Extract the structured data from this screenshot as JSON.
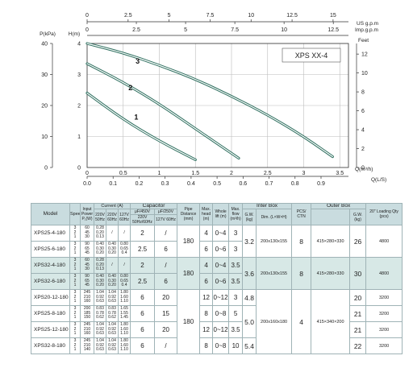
{
  "chart_data": {
    "type": "line",
    "title": "XPS XX-4",
    "left_outer_axis": {
      "label": "P(kPa)",
      "ticks": [
        0,
        10,
        20,
        30,
        40
      ],
      "range": [
        0,
        40
      ]
    },
    "left_axis": {
      "label": "H(m)",
      "ticks": [
        0,
        1,
        2,
        3,
        4
      ],
      "range": [
        0,
        4
      ]
    },
    "right_axis": {
      "label": "Feet",
      "ticks": [
        0,
        2,
        4,
        6,
        8,
        10,
        12
      ],
      "range": [
        0,
        13.12
      ]
    },
    "top_axis_1": {
      "label": "US g.p.m",
      "ticks": [
        0,
        2.5,
        5,
        7.5,
        10,
        12.5,
        15
      ]
    },
    "top_axis_2": {
      "label": "Imp.g.p.m",
      "ticks": [
        0,
        2.5,
        5,
        7.5,
        10,
        12.5
      ]
    },
    "bottom_axis_1": {
      "label": "Q(m³/h)",
      "ticks": [
        0,
        0.5,
        1,
        1.5,
        2,
        2.5,
        3,
        3.5
      ]
    },
    "bottom_axis_2": {
      "label": "Q(L/S)",
      "ticks": [
        0.0,
        0.1,
        0.2,
        0.3,
        0.4,
        0.5,
        0.6,
        0.7,
        0.8,
        0.9
      ]
    },
    "xlim": [
      0,
      3.62
    ],
    "ylim": [
      0,
      4
    ],
    "series": [
      {
        "name": "1",
        "x": [
          0,
          0.5,
          1.0,
          1.5
        ],
        "y": [
          2.4,
          1.55,
          0.85,
          0.25
        ],
        "label_at": [
          0.68,
          1.55
        ]
      },
      {
        "name": "2",
        "x": [
          0,
          0.5,
          1.0,
          1.5,
          2.1
        ],
        "y": [
          3.35,
          2.75,
          2.05,
          1.25,
          0.3
        ],
        "label_at": [
          0.6,
          2.5
        ]
      },
      {
        "name": "3",
        "x": [
          0,
          0.5,
          1.0,
          1.5,
          2.0,
          2.5,
          3.0,
          3.4
        ],
        "y": [
          4.0,
          3.7,
          3.3,
          2.85,
          2.3,
          1.7,
          1.0,
          0.35
        ],
        "label_at": [
          0.7,
          3.35
        ]
      }
    ]
  },
  "table": {
    "headers": {
      "model": "Model",
      "speed": "Speed",
      "power": "Input Power P₁(W)",
      "current": "Current (A)",
      "cur_220_50": "220V 50Hz",
      "cur_220_60": "220V 60Hz",
      "cur_127_60": "127V 60Hz",
      "capacitor": "Capacitor",
      "cap_450": "μF/450V",
      "cap_250": "μF/250V",
      "cap_220": "220V 50Hz/60Hz",
      "cap_127": "127V 60Hz",
      "pipe": "Pipe Distance (mm)",
      "maxhead": "Max. head (m)",
      "lift": "Whole lift (m)",
      "maxflow": "Max. flow (m³/h)",
      "inner": "Inter Box",
      "inner_gw": "G.W. (kg)",
      "inner_dim": "Dim. (L×W×H)",
      "pcs": "PCS/ CTN",
      "outer": "Outer Box",
      "outer_dim": "",
      "outer_gw": "G.W. (kg)",
      "loading": "20\" Loading Qty (pcs)"
    },
    "rows": [
      {
        "model": "XPS25-4-180",
        "speed": "3\n2\n1",
        "power": "60\n45\n30",
        "c1": "0.28\n0.20\n0.13",
        "c2": "/",
        "c3": "/",
        "cap1": "2",
        "cap2": "/",
        "head": "4",
        "lift": "0~4",
        "flow": "3"
      },
      {
        "model": "XPS25-6-180",
        "speed": "3\n2\n1",
        "power": "90\n65\n45",
        "c1": "0.40\n0.30\n0.20",
        "c2": "0.40\n0.30\n0.20",
        "c3": "0.80\n0.65\n0.4",
        "cap1": "2.5",
        "cap2": "6",
        "head": "6",
        "lift": "0~6",
        "flow": "3"
      },
      {
        "model": "XPS32-4-180",
        "speed": "3\n2\n1",
        "power": "60\n45\n30",
        "c1": "0.28\n0.20\n0.13",
        "c2": "/",
        "c3": "/",
        "cap1": "2",
        "cap2": "/",
        "head": "4",
        "lift": "0~4",
        "flow": "3.5"
      },
      {
        "model": "XPS32-6-180",
        "speed": "3\n2\n1",
        "power": "90\n65\n45",
        "c1": "0.40\n0.30\n0.20",
        "c2": "0.40\n0.30\n0.20",
        "c3": "0.80\n0.65\n0.4",
        "cap1": "2.5",
        "cap2": "6",
        "head": "6",
        "lift": "0~6",
        "flow": "3.5"
      },
      {
        "model": "XPS20-12-180",
        "speed": "3\n2\n1",
        "power": "245\n210\n160",
        "c1": "1.04\n0.92\n0.63",
        "c2": "1.04\n0.92\n0.63",
        "c3": "1.80\n1.60\n1.10",
        "cap1": "6",
        "cap2": "20",
        "head": "12",
        "lift": "0~12",
        "flow": "3"
      },
      {
        "model": "XPS25-8-180",
        "speed": "3\n2\n1",
        "power": "200\n185\n150",
        "c1": "0.83\n0.78\n0.62",
        "c2": "0.83\n0.78\n0.62",
        "c3": "1.65\n1.55\n1.45",
        "cap1": "6",
        "cap2": "15",
        "head": "8",
        "lift": "0~8",
        "flow": "5"
      },
      {
        "model": "XPS25-12-180",
        "speed": "3\n2\n1",
        "power": "245\n210\n160",
        "c1": "1.04\n0.92\n0.63",
        "c2": "1.04\n0.92\n0.63",
        "c3": "1.80\n1.60\n1.10",
        "cap1": "6",
        "cap2": "20",
        "head": "12",
        "lift": "0~12",
        "flow": "3.5"
      },
      {
        "model": "XPS32-8-180",
        "speed": "3\n2\n1",
        "power": "245\n210\n140",
        "c1": "1.04\n0.92\n0.63",
        "c2": "1.04\n0.92\n0.63",
        "c3": "1.80\n1.60\n1.10",
        "cap1": "6",
        "cap2": "/",
        "head": "8",
        "lift": "0~8",
        "flow": "10"
      }
    ],
    "groups": {
      "pipe": "180",
      "g1": {
        "inner_gw": "3.2",
        "inner_dim": "200x130x155",
        "pcs": "8",
        "outer_dim": "415×280×330",
        "outer_gw": "26",
        "loading": "4800"
      },
      "g2": {
        "inner_gw": "3.6",
        "inner_dim": "200x130x155",
        "pcs": "8",
        "outer_dim": "415×280×330",
        "outer_gw": "30",
        "loading": "4800"
      },
      "g3": {
        "inner_gw": [
          "4.8",
          "5.0",
          "5.4"
        ],
        "inner_dim": "200x160x180",
        "pcs": "4",
        "outer_dim": "415×340×200",
        "outer_gw": [
          "20",
          "21",
          "21",
          "22"
        ],
        "loading": [
          "3200",
          "3200",
          "3200",
          "3200"
        ]
      }
    },
    "colors": {
      "header": "#c9dcdf",
      "band": "#d7e8e6",
      "curve": "#2e6f5f"
    }
  }
}
